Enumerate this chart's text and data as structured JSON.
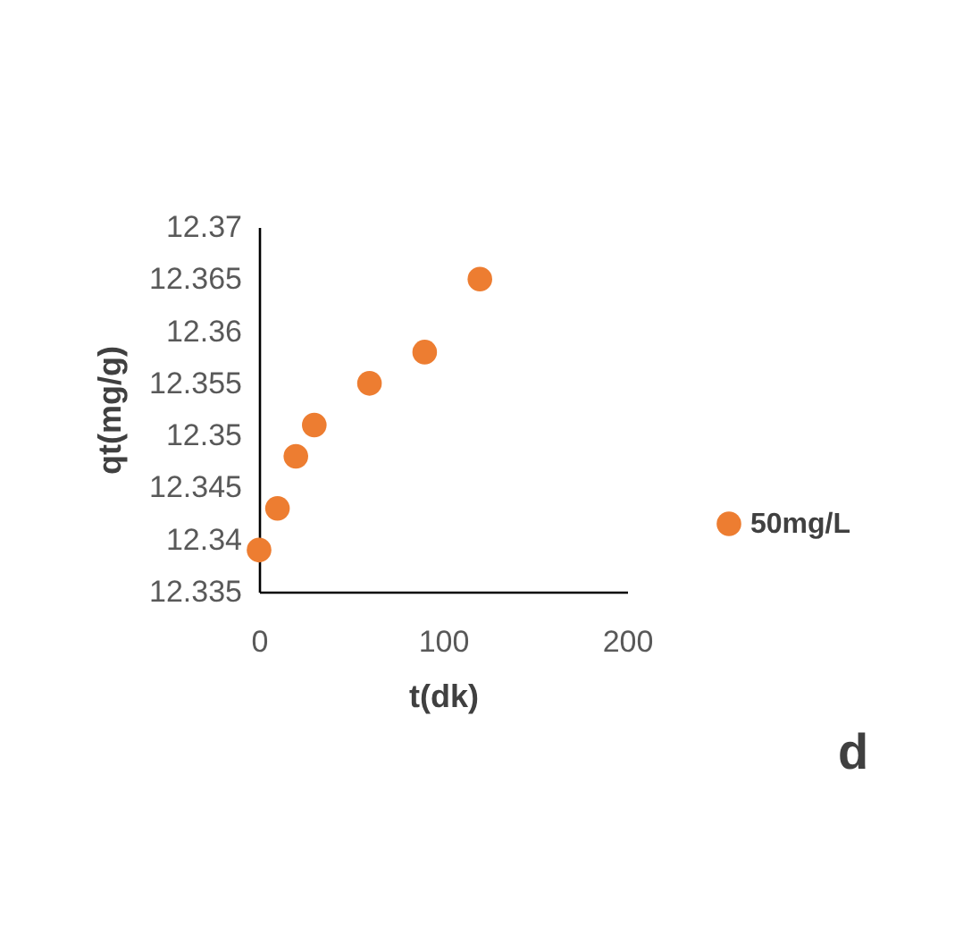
{
  "chart_data": {
    "type": "scatter",
    "xlabel": "t(dk)",
    "ylabel": "qt(mg/g)",
    "x": [
      0,
      10,
      20,
      30,
      60,
      90,
      120
    ],
    "series": [
      {
        "name": "50mg/L",
        "color": "#ed7d31",
        "values": [
          12.339,
          12.343,
          12.348,
          12.351,
          12.355,
          12.358,
          12.365
        ]
      }
    ],
    "xlim": [
      0,
      200
    ],
    "xticks": [
      0,
      100,
      200
    ],
    "ylim": [
      12.335,
      12.37
    ],
    "yticks": [
      12.335,
      12.34,
      12.345,
      12.35,
      12.355,
      12.36,
      12.365,
      12.37
    ],
    "grid": false,
    "legend": "right",
    "marker": "circle",
    "annotations": [
      "d"
    ]
  }
}
